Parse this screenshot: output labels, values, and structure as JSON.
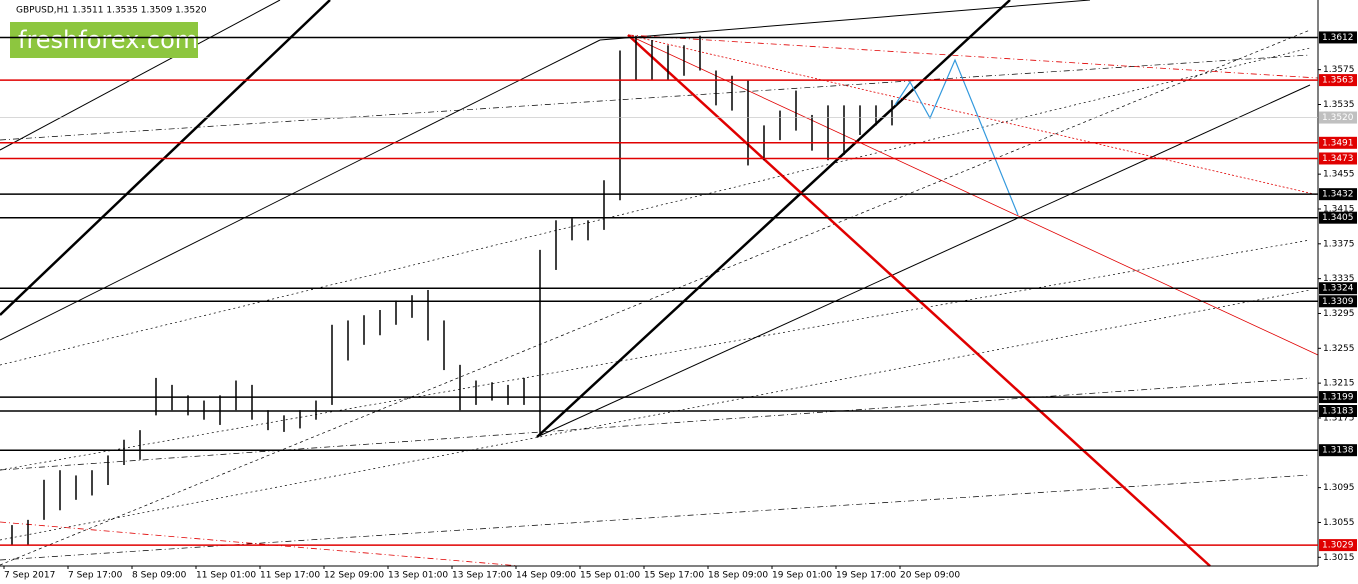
{
  "chart_data": {
    "type": "range-bar",
    "title": "GBPUSD,H1  1.3511 1.3535 1.3509 1.3520",
    "logo": "freshforex.com",
    "categories": [
      "7 Sep 2017",
      "7 Sep 17:00",
      "8 Sep 09:00",
      "11 Sep 01:00",
      "11 Sep 17:00",
      "12 Sep 09:00",
      "13 Sep 01:00",
      "13 Sep 17:00",
      "14 Sep 09:00",
      "15 Sep 01:00",
      "15 Sep 17:00",
      "18 Sep 09:00",
      "19 Sep 01:00",
      "19 Sep 17:00",
      "20 Sep 09:00"
    ],
    "high": [
      1.3052,
      1.3058,
      1.3104,
      1.3115,
      1.3109,
      1.3115,
      1.3132,
      1.315,
      1.3161,
      1.3221,
      1.3213,
      1.3201,
      1.3195,
      1.3201,
      1.3218,
      1.3213,
      1.3184,
      1.3178,
      1.3184,
      1.3195,
      1.3282,
      1.3287,
      1.3293,
      1.3299,
      1.331,
      1.3316,
      1.3322,
      1.3287,
      1.3236,
      1.3218,
      1.3216,
      1.3213,
      1.3221,
      1.3368,
      1.3402,
      1.3404,
      1.3402,
      1.3448,
      1.3597,
      1.3614,
      1.3609,
      1.3603,
      1.3603,
      1.3614,
      1.3574,
      1.3568,
      1.3563,
      1.3511,
      1.3528,
      1.3551,
      1.3523,
      1.3534,
      1.3534,
      1.3534,
      1.3534,
      1.354
    ],
    "low": [
      1.3029,
      1.3029,
      1.3058,
      1.3069,
      1.3081,
      1.3086,
      1.3098,
      1.3121,
      1.3127,
      1.3178,
      1.3184,
      1.3178,
      1.3173,
      1.3167,
      1.3184,
      1.3173,
      1.3161,
      1.3159,
      1.3163,
      1.3173,
      1.319,
      1.3241,
      1.3259,
      1.327,
      1.3282,
      1.329,
      1.3264,
      1.323,
      1.3184,
      1.319,
      1.3195,
      1.319,
      1.319,
      1.3155,
      1.3345,
      1.3379,
      1.3379,
      1.3391,
      1.3425,
      1.3563,
      1.3563,
      1.3563,
      1.3568,
      1.3574,
      1.3534,
      1.3528,
      1.3465,
      1.3471,
      1.3494,
      1.3505,
      1.3482,
      1.3471,
      1.3477,
      1.35,
      1.3511,
      1.3511
    ],
    "color": "#000000",
    "ylim": [
      1.3005,
      1.3655
    ],
    "yticks": [
      1.3015,
      1.3055,
      1.3095,
      1.3175,
      1.3215,
      1.3255,
      1.3295,
      1.3335,
      1.3375,
      1.3415,
      1.3455,
      1.3535,
      1.3575
    ],
    "levels": [
      {
        "value": 1.3612,
        "color": "#000000"
      },
      {
        "value": 1.3563,
        "color": "#e00000"
      },
      {
        "value": 1.352,
        "label": "1.3520",
        "color": "#c0c0c0"
      },
      {
        "value": 1.3491,
        "color": "#e00000"
      },
      {
        "value": 1.3473,
        "color": "#e00000"
      },
      {
        "value": 1.3432,
        "color": "#000000"
      },
      {
        "value": 1.3405,
        "color": "#000000"
      },
      {
        "value": 1.3324,
        "color": "#000000"
      },
      {
        "value": 1.3309,
        "color": "#000000"
      },
      {
        "value": 1.3199,
        "color": "#000000"
      },
      {
        "value": 1.3183,
        "color": "#000000"
      },
      {
        "value": 1.3138,
        "color": "#000000"
      },
      {
        "value": 1.3029,
        "color": "#e00000"
      }
    ]
  }
}
